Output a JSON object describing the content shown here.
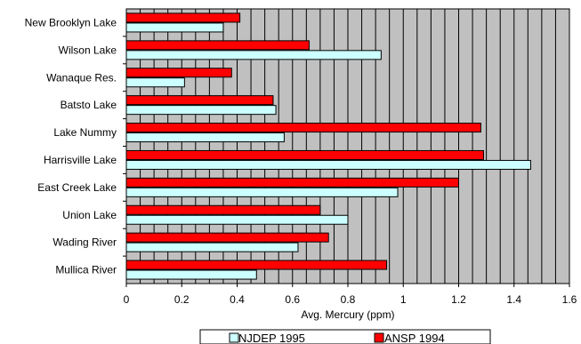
{
  "chart_data": {
    "type": "bar",
    "orientation": "horizontal",
    "categories": [
      "New Brooklyn Lake",
      "Wilson Lake",
      "Wanaque Res.",
      "Batsto Lake",
      "Lake Nummy",
      "Harrisville Lake",
      "East Creek Lake",
      "Union Lake",
      "Wading River",
      "Mullica River"
    ],
    "series": [
      {
        "name": "NJDEP 1995",
        "color": "#ccffff",
        "values": [
          0.35,
          0.92,
          0.21,
          0.54,
          0.57,
          1.46,
          0.98,
          0.8,
          0.62,
          0.47
        ]
      },
      {
        "name": "ANSP 1994",
        "color": "#ff0000",
        "values": [
          0.41,
          0.66,
          0.38,
          0.53,
          1.28,
          1.29,
          1.2,
          0.7,
          0.73,
          0.94
        ]
      }
    ],
    "xlabel": "Avg. Mercury (ppm)",
    "ylabel": "",
    "xlim": [
      0,
      1.6
    ],
    "xticks": [
      "0",
      "0.2",
      "0.4",
      "0.6",
      "0.8",
      "1",
      "1.2",
      "1.4",
      "1.6"
    ],
    "minor_step": 0.05,
    "grid": true,
    "plot_background": "#c0c0c0",
    "legend_position": "bottom"
  }
}
